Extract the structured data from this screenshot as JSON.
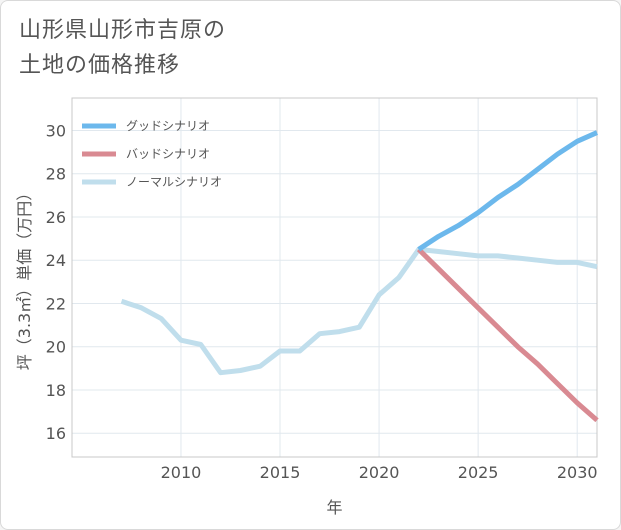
{
  "title": {
    "line1": "山形県山形市吉原の",
    "line2": "土地の価格推移"
  },
  "chart_data": {
    "type": "line",
    "xlabel": "年",
    "ylabel": "坪（3.3㎡）単価（万円）",
    "xlim": [
      2004.5,
      2031
    ],
    "ylim": [
      14.9,
      31.5
    ],
    "x_ticks": [
      2010,
      2015,
      2020,
      2025,
      2030
    ],
    "y_ticks": [
      16,
      18,
      20,
      22,
      24,
      26,
      28,
      30
    ],
    "grid": true,
    "legend_position": "top-left",
    "series": [
      {
        "name": "グッドシナリオ",
        "color": "#6cb8ec",
        "points": [
          [
            2022,
            24.5
          ],
          [
            2023,
            25.1
          ],
          [
            2024,
            25.6
          ],
          [
            2025,
            26.2
          ],
          [
            2026,
            26.9
          ],
          [
            2027,
            27.5
          ],
          [
            2028,
            28.2
          ],
          [
            2029,
            28.9
          ],
          [
            2030,
            29.5
          ],
          [
            2031,
            29.9
          ]
        ]
      },
      {
        "name": "バッドシナリオ",
        "color": "#d98a92",
        "points": [
          [
            2022,
            24.5
          ],
          [
            2023,
            23.6
          ],
          [
            2024,
            22.7
          ],
          [
            2025,
            21.8
          ],
          [
            2026,
            20.9
          ],
          [
            2027,
            20.0
          ],
          [
            2028,
            19.2
          ],
          [
            2029,
            18.3
          ],
          [
            2030,
            17.4
          ],
          [
            2031,
            16.6
          ]
        ]
      },
      {
        "name": "ノーマルシナリオ",
        "color": "#c0deec",
        "points": [
          [
            2007,
            22.1
          ],
          [
            2008,
            21.8
          ],
          [
            2009,
            21.3
          ],
          [
            2010,
            20.3
          ],
          [
            2011,
            20.1
          ],
          [
            2012,
            18.8
          ],
          [
            2013,
            18.9
          ],
          [
            2014,
            19.1
          ],
          [
            2015,
            19.8
          ],
          [
            2016,
            19.8
          ],
          [
            2017,
            20.6
          ],
          [
            2018,
            20.7
          ],
          [
            2019,
            20.9
          ],
          [
            2020,
            22.4
          ],
          [
            2021,
            23.2
          ],
          [
            2022,
            24.5
          ],
          [
            2023,
            24.4
          ],
          [
            2024,
            24.3
          ],
          [
            2025,
            24.2
          ],
          [
            2026,
            24.2
          ],
          [
            2027,
            24.1
          ],
          [
            2028,
            24.0
          ],
          [
            2029,
            23.9
          ],
          [
            2030,
            23.9
          ],
          [
            2031,
            23.7
          ]
        ]
      }
    ]
  }
}
